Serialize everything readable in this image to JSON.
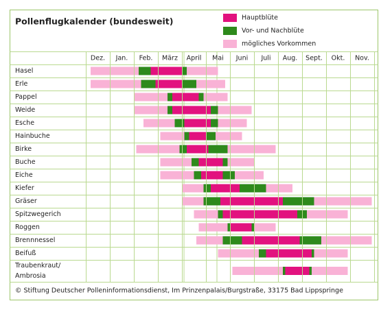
{
  "chart_data": {
    "type": "gantt",
    "title": "Pollenflugkalender (bundesweit)",
    "series": [
      {
        "name": "Hauptblüte",
        "color": "#e2127f"
      },
      {
        "name": "Vor- und Nachblüte",
        "color": "#2e8a1c"
      },
      {
        "name": "mögliches Vorkommen",
        "color": "#f9b2d6"
      }
    ],
    "categories": [
      "Dez.",
      "Jan.",
      "Feb.",
      "März",
      "April",
      "Mai",
      "Juni",
      "Juli",
      "Aug.",
      "Sept.",
      "Okt.",
      "Nov."
    ],
    "rows": [
      {
        "label": [
          "Hasel"
        ],
        "segments": [
          [
            0.2,
            2.2,
            2
          ],
          [
            2.2,
            2.7,
            1
          ],
          [
            2.7,
            4.0,
            0
          ],
          [
            4.0,
            4.2,
            1
          ],
          [
            4.2,
            5.5,
            2
          ]
        ]
      },
      {
        "label": [
          "Erle"
        ],
        "segments": [
          [
            0.2,
            2.3,
            2
          ],
          [
            2.3,
            2.9,
            1
          ],
          [
            2.9,
            4.0,
            0
          ],
          [
            4.0,
            4.6,
            1
          ],
          [
            4.6,
            5.8,
            2
          ]
        ]
      },
      {
        "label": [
          "Pappel"
        ],
        "segments": [
          [
            2.0,
            3.4,
            2
          ],
          [
            3.4,
            3.6,
            1
          ],
          [
            3.6,
            4.7,
            0
          ],
          [
            4.7,
            4.9,
            1
          ],
          [
            4.9,
            5.9,
            2
          ]
        ]
      },
      {
        "label": [
          "Weide"
        ],
        "segments": [
          [
            2.0,
            3.4,
            2
          ],
          [
            3.4,
            3.6,
            1
          ],
          [
            3.6,
            5.2,
            0
          ],
          [
            5.2,
            5.5,
            1
          ],
          [
            5.5,
            6.9,
            2
          ]
        ]
      },
      {
        "label": [
          "Esche"
        ],
        "segments": [
          [
            2.4,
            3.7,
            2
          ],
          [
            3.7,
            4.1,
            1
          ],
          [
            4.1,
            5.2,
            0
          ],
          [
            5.2,
            5.5,
            1
          ],
          [
            5.5,
            6.7,
            2
          ]
        ]
      },
      {
        "label": [
          "Hainbuche"
        ],
        "segments": [
          [
            3.1,
            4.1,
            2
          ],
          [
            4.1,
            4.3,
            1
          ],
          [
            4.3,
            5.0,
            0
          ],
          [
            5.0,
            5.4,
            1
          ],
          [
            5.4,
            6.5,
            2
          ]
        ]
      },
      {
        "label": [
          "Birke"
        ],
        "segments": [
          [
            2.1,
            3.9,
            2
          ],
          [
            3.9,
            4.2,
            1
          ],
          [
            4.2,
            5.1,
            0
          ],
          [
            5.1,
            5.9,
            1
          ],
          [
            5.9,
            7.9,
            2
          ]
        ]
      },
      {
        "label": [
          "Buche"
        ],
        "segments": [
          [
            3.1,
            4.4,
            2
          ],
          [
            4.4,
            4.7,
            1
          ],
          [
            4.7,
            5.7,
            0
          ],
          [
            5.7,
            5.9,
            1
          ],
          [
            5.9,
            7.0,
            2
          ]
        ]
      },
      {
        "label": [
          "Eiche"
        ],
        "segments": [
          [
            3.1,
            4.5,
            2
          ],
          [
            4.5,
            4.8,
            1
          ],
          [
            4.8,
            5.7,
            0
          ],
          [
            5.7,
            6.2,
            1
          ],
          [
            6.2,
            7.4,
            2
          ]
        ]
      },
      {
        "label": [
          "Kiefer"
        ],
        "segments": [
          [
            4.0,
            4.9,
            2
          ],
          [
            4.9,
            5.2,
            1
          ],
          [
            5.2,
            6.4,
            0
          ],
          [
            6.4,
            7.5,
            1
          ],
          [
            7.5,
            8.6,
            2
          ]
        ]
      },
      {
        "label": [
          "Gräser"
        ],
        "segments": [
          [
            4.0,
            4.9,
            2
          ],
          [
            4.9,
            5.6,
            1
          ],
          [
            5.6,
            8.2,
            0
          ],
          [
            8.2,
            9.5,
            1
          ],
          [
            9.5,
            11.9,
            2
          ]
        ]
      },
      {
        "label": [
          "Spitzwegerich"
        ],
        "segments": [
          [
            4.5,
            5.5,
            2
          ],
          [
            5.5,
            5.7,
            1
          ],
          [
            5.7,
            8.8,
            0
          ],
          [
            8.8,
            9.2,
            1
          ],
          [
            9.2,
            10.9,
            2
          ]
        ]
      },
      {
        "label": [
          "Roggen"
        ],
        "segments": [
          [
            4.7,
            5.9,
            2
          ],
          [
            5.9,
            6.0,
            1
          ],
          [
            6.0,
            6.9,
            0
          ],
          [
            6.9,
            7.0,
            1
          ],
          [
            7.0,
            7.9,
            2
          ]
        ]
      },
      {
        "label": [
          "Brennnessel"
        ],
        "segments": [
          [
            4.6,
            5.7,
            2
          ],
          [
            5.7,
            6.5,
            1
          ],
          [
            6.5,
            8.9,
            0
          ],
          [
            8.9,
            9.8,
            1
          ],
          [
            9.8,
            11.9,
            2
          ]
        ]
      },
      {
        "label": [
          "Beifuß"
        ],
        "segments": [
          [
            5.5,
            7.2,
            2
          ],
          [
            7.2,
            7.5,
            1
          ],
          [
            7.5,
            9.4,
            0
          ],
          [
            9.4,
            9.5,
            1
          ],
          [
            9.5,
            10.9,
            2
          ]
        ]
      },
      {
        "label": [
          "Traubenkraut/",
          "Ambrosia"
        ],
        "segments": [
          [
            6.1,
            8.2,
            2
          ],
          [
            8.2,
            8.3,
            1
          ],
          [
            8.3,
            9.3,
            0
          ],
          [
            9.3,
            9.4,
            1
          ],
          [
            9.4,
            10.9,
            2
          ]
        ]
      }
    ],
    "footer": "© Stiftung Deutscher Polleninformationsdienst, Im Prinzenpalais/Burgstraße, 33175 Bad Lippspringe"
  }
}
